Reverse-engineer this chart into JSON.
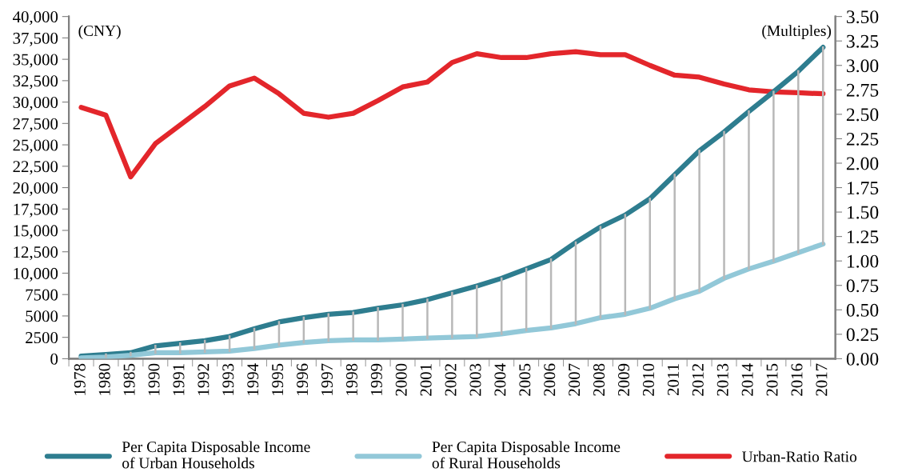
{
  "chart_data": {
    "type": "line",
    "categories": [
      "1978",
      "1980",
      "1985",
      "1990",
      "1991",
      "1992",
      "1993",
      "1994",
      "1995",
      "1996",
      "1997",
      "1998",
      "1999",
      "2000",
      "2001",
      "2002",
      "2003",
      "2004",
      "2005",
      "2006",
      "2007",
      "2008",
      "2009",
      "2010",
      "2011",
      "2012",
      "2013",
      "2014",
      "2015",
      "2016",
      "2017"
    ],
    "series": [
      {
        "name": "Per Capita Disposable Income\nof Urban Households",
        "color": "#2e7d8f",
        "values": [
          300,
          500,
          700,
          1500,
          1800,
          2100,
          2600,
          3500,
          4300,
          4800,
          5200,
          5400,
          5900,
          6300,
          6900,
          7700,
          8500,
          9400,
          10500,
          11600,
          13600,
          15400,
          16800,
          18700,
          21500,
          24300,
          26500,
          28900,
          31200,
          33600,
          36400
        ]
      },
      {
        "name": "Per Capita Disposable Income\nof Rural Households",
        "color": "#92c8d8",
        "values": [
          100,
          200,
          400,
          700,
          700,
          800,
          900,
          1200,
          1600,
          1900,
          2100,
          2200,
          2200,
          2300,
          2400,
          2500,
          2600,
          2900,
          3300,
          3600,
          4100,
          4800,
          5200,
          5900,
          7000,
          7900,
          9400,
          10500,
          11400,
          12400,
          13400
        ],
        "errors": [
          null,
          [
            200,
            500
          ],
          [
            400,
            700
          ],
          [
            700,
            1500
          ],
          [
            700,
            1800
          ],
          [
            800,
            2100
          ],
          [
            900,
            2600
          ],
          [
            1200,
            3500
          ],
          [
            1600,
            4300
          ],
          [
            1900,
            4800
          ],
          [
            2100,
            5200
          ],
          [
            2200,
            5400
          ],
          [
            2200,
            5900
          ],
          [
            2300,
            6300
          ],
          [
            2400,
            6900
          ],
          [
            2500,
            7700
          ],
          [
            2600,
            8500
          ],
          [
            2900,
            9400
          ],
          [
            3300,
            10500
          ],
          [
            3600,
            11600
          ],
          [
            4100,
            13600
          ],
          [
            4800,
            15400
          ],
          [
            5200,
            16800
          ],
          [
            5900,
            18700
          ],
          [
            7000,
            21500
          ],
          [
            7900,
            24300
          ],
          [
            9400,
            26500
          ],
          [
            10500,
            28900
          ],
          [
            11400,
            31200
          ],
          [
            12400,
            33600
          ],
          [
            13400,
            36400
          ]
        ]
      },
      {
        "name": "Urban-Ratio Ratio",
        "color": "#e3262b",
        "axis": "y2",
        "values": [
          2.57,
          2.49,
          1.86,
          2.2,
          2.39,
          2.58,
          2.79,
          2.87,
          2.71,
          2.51,
          2.47,
          2.51,
          2.64,
          2.78,
          2.83,
          3.03,
          3.12,
          3.08,
          3.08,
          3.12,
          3.14,
          3.11,
          3.11,
          3.0,
          2.9,
          2.88,
          2.81,
          2.75,
          2.73,
          2.72,
          2.71
        ]
      }
    ],
    "ylabel": "(CNY)",
    "y2label": "(Multiples)",
    "ylim": [
      0,
      40000
    ],
    "yticks": [
      0,
      2500,
      5000,
      7500,
      {
        "value": 10000,
        "label": "10,000"
      },
      {
        "value": 12500,
        "label": "12,500"
      },
      {
        "value": 15000,
        "label": "15,000"
      },
      {
        "value": 17500,
        "label": "17,500"
      },
      {
        "value": 20000,
        "label": "20,000"
      },
      {
        "value": 22500,
        "label": "22,500"
      },
      {
        "value": 25000,
        "label": "25,000"
      },
      {
        "value": 27500,
        "label": "27,500"
      },
      {
        "value": 30000,
        "label": "30,000"
      },
      {
        "value": 32500,
        "label": "32,500"
      },
      {
        "value": 35000,
        "label": "35,000"
      },
      {
        "value": 37500,
        "label": "37,500"
      },
      {
        "value": 40000,
        "label": "40,000"
      }
    ],
    "y2lim": [
      0,
      3.5
    ],
    "y2ticks": [
      {
        "value": 0,
        "label": "0.00"
      },
      {
        "value": 0.25,
        "label": "0.25"
      },
      {
        "value": 0.5,
        "label": "0.50"
      },
      {
        "value": 0.75,
        "label": "0.75"
      },
      {
        "value": 1,
        "label": "1.00"
      },
      {
        "value": 1.25,
        "label": "1.25"
      },
      {
        "value": 1.5,
        "label": "1.50"
      },
      {
        "value": 1.75,
        "label": "1.75"
      },
      {
        "value": 2,
        "label": "2.00"
      },
      {
        "value": 2.25,
        "label": "2.25"
      },
      {
        "value": 2.5,
        "label": "2.50"
      },
      {
        "value": 2.75,
        "label": "2.75"
      },
      {
        "value": 3,
        "label": "3.00"
      },
      {
        "value": 3.25,
        "label": "3.25"
      },
      {
        "value": 3.5,
        "label": "3.50"
      }
    ],
    "grid": false,
    "legend": "bottom",
    "marker": "none",
    "line_style": "solid"
  }
}
